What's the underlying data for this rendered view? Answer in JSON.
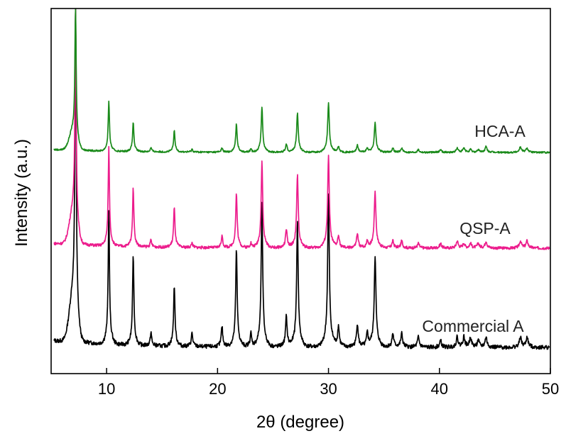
{
  "chart_data": {
    "type": "line",
    "title": "",
    "xlabel": "2θ (degree)",
    "ylabel": "Intensity (a.u.)",
    "xlim": [
      5,
      50
    ],
    "xticks": [
      10,
      20,
      30,
      40,
      50
    ],
    "yticks": [],
    "grid": false,
    "legend": "none",
    "peaks_2theta": [
      7.2,
      10.2,
      12.4,
      14.0,
      16.1,
      17.7,
      20.4,
      21.7,
      23.0,
      24.0,
      26.2,
      27.2,
      30.0,
      30.9,
      32.6,
      33.5,
      34.2,
      35.8,
      36.6,
      38.1,
      40.1,
      41.6,
      42.2,
      42.8,
      43.5,
      44.2,
      47.3,
      47.9
    ],
    "series": [
      {
        "name": "Commercial A",
        "color": "#000000",
        "offset": 0,
        "relative_intensity": [
          1.0,
          0.4,
          0.27,
          0.04,
          0.18,
          0.04,
          0.06,
          0.29,
          0.04,
          0.42,
          0.09,
          0.37,
          0.45,
          0.06,
          0.07,
          0.04,
          0.27,
          0.04,
          0.04,
          0.03,
          0.02,
          0.03,
          0.03,
          0.03,
          0.02,
          0.03,
          0.03,
          0.03
        ]
      },
      {
        "name": "QSP-A",
        "color": "#ec1c8c",
        "offset": 1,
        "relative_intensity": [
          1.0,
          0.42,
          0.25,
          0.03,
          0.17,
          0.02,
          0.05,
          0.23,
          0.02,
          0.37,
          0.08,
          0.31,
          0.39,
          0.05,
          0.06,
          0.03,
          0.24,
          0.03,
          0.03,
          0.02,
          0.02,
          0.03,
          0.02,
          0.02,
          0.02,
          0.03,
          0.03,
          0.03
        ]
      },
      {
        "name": "HCA-A",
        "color": "#1a8a1a",
        "offset": 2,
        "relative_intensity": [
          1.0,
          0.36,
          0.21,
          0.03,
          0.15,
          0.02,
          0.03,
          0.2,
          0.02,
          0.32,
          0.06,
          0.28,
          0.35,
          0.04,
          0.05,
          0.03,
          0.21,
          0.03,
          0.03,
          0.02,
          0.02,
          0.03,
          0.03,
          0.02,
          0.02,
          0.04,
          0.04,
          0.03
        ]
      }
    ]
  }
}
